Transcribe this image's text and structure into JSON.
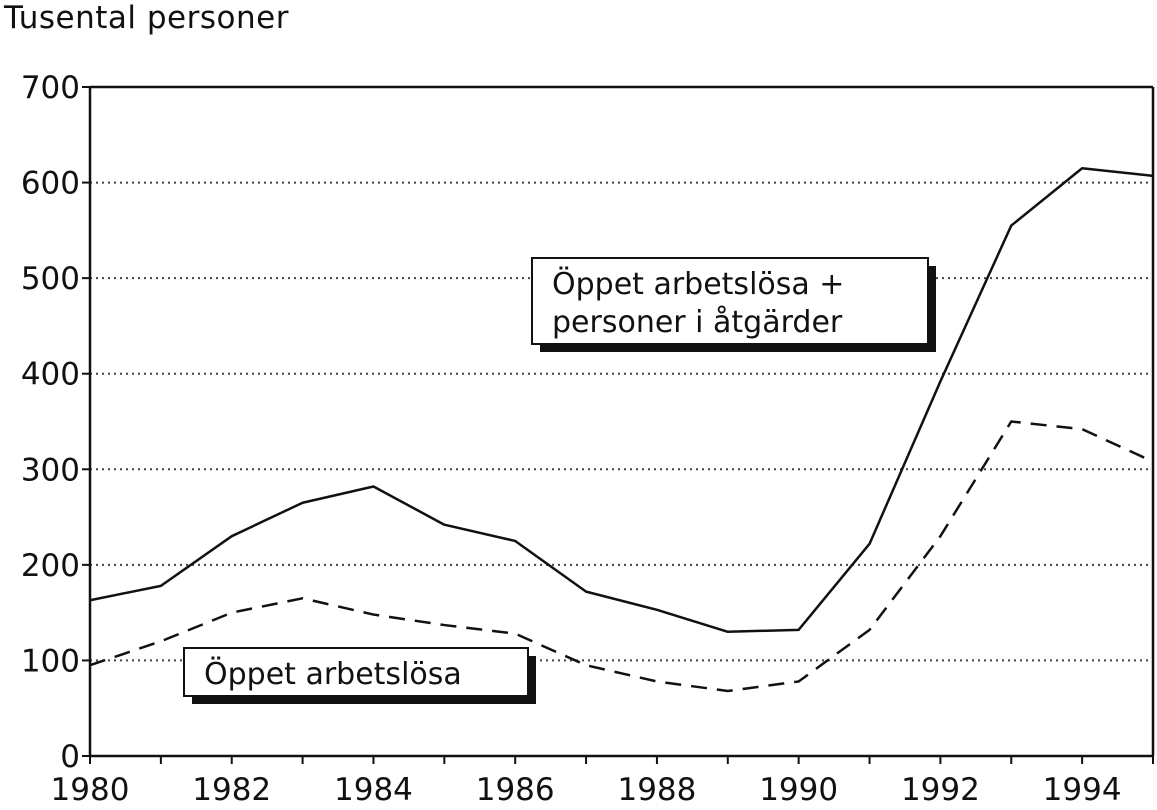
{
  "chart_data": {
    "type": "line",
    "title": "",
    "ylabel": "Tusental personer",
    "xlabel": "",
    "xlim": [
      1980,
      1995
    ],
    "ylim": [
      0,
      700
    ],
    "x_ticks": [
      "1980",
      "1982",
      "1984",
      "1986",
      "1988",
      "1990",
      "1992",
      "1994"
    ],
    "y_ticks": [
      "0",
      "100",
      "200",
      "300",
      "400",
      "500",
      "600",
      "700"
    ],
    "grid": "horizontal dotted",
    "x": [
      1980,
      1981,
      1982,
      1983,
      1984,
      1985,
      1986,
      1987,
      1988,
      1989,
      1990,
      1991,
      1992,
      1993,
      1994,
      1995
    ],
    "series": [
      {
        "name": "Öppet arbetslösa + personer i åtgärder",
        "style": "solid",
        "values": [
          163,
          178,
          230,
          265,
          282,
          242,
          225,
          172,
          153,
          130,
          132,
          222,
          392,
          555,
          615,
          607
        ]
      },
      {
        "name": "Öppet arbetslösa",
        "style": "dashed",
        "values": [
          95,
          120,
          150,
          165,
          148,
          137,
          128,
          95,
          78,
          68,
          78,
          132,
          230,
          350,
          342,
          308
        ]
      }
    ],
    "annotations": [
      {
        "lines": [
          "Öppet arbetslösa +",
          "personer i åtgärder"
        ],
        "series": 0
      },
      {
        "lines": [
          "Öppet arbetslösa"
        ],
        "series": 1
      }
    ],
    "colors": {
      "line": "#111111",
      "grid": "#444444",
      "axis": "#111111"
    }
  }
}
